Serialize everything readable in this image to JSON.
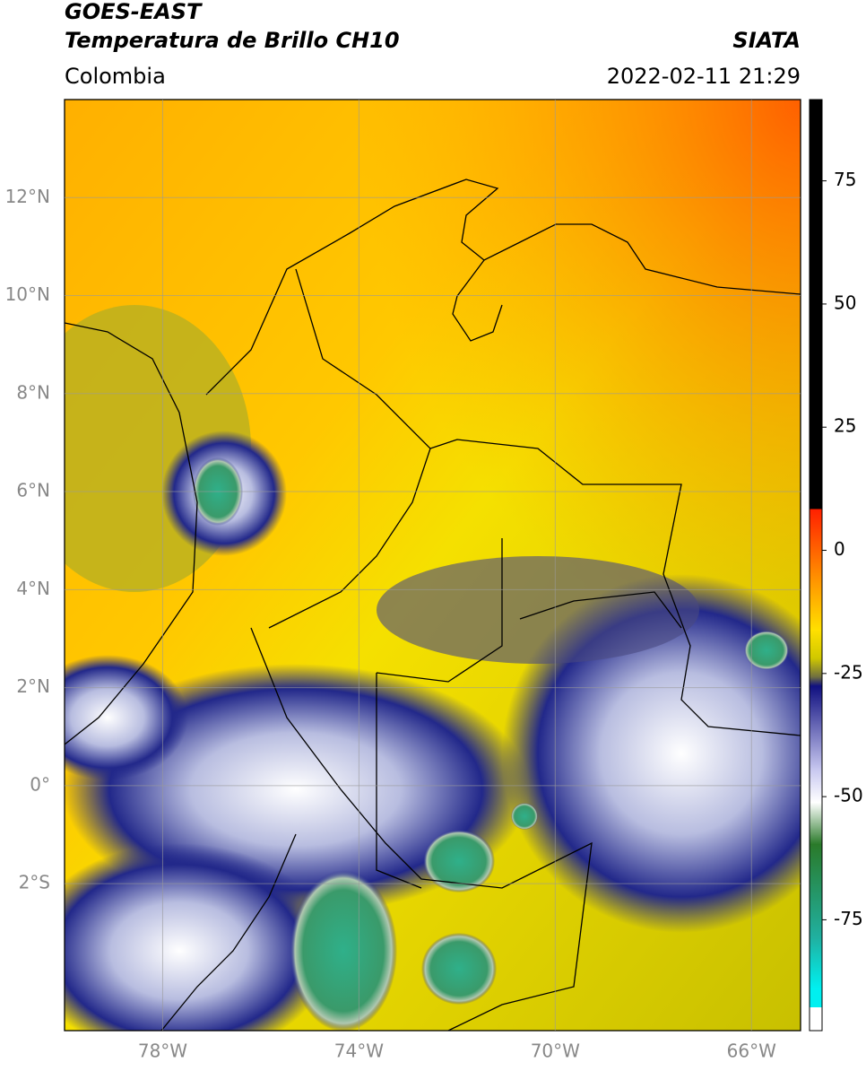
{
  "header": {
    "title": "GOES-EAST",
    "subtitle": "Temperatura de Brillo CH10",
    "source": "SIATA",
    "region": "Colombia",
    "datetime": "2022-02-11 21:29"
  },
  "map": {
    "xlim": [
      -80,
      -65
    ],
    "ylim": [
      -5,
      14
    ],
    "xticks": [
      {
        "value": -78,
        "label": "78°W"
      },
      {
        "value": -74,
        "label": "74°W"
      },
      {
        "value": -70,
        "label": "70°W"
      },
      {
        "value": -66,
        "label": "66°W"
      }
    ],
    "yticks": [
      {
        "value": 12,
        "label": "12°N"
      },
      {
        "value": 10,
        "label": "10°N"
      },
      {
        "value": 8,
        "label": "8°N"
      },
      {
        "value": 6,
        "label": "6°N"
      },
      {
        "value": 4,
        "label": "4°N"
      },
      {
        "value": 2,
        "label": "2°N"
      },
      {
        "value": 0,
        "label": "0°"
      },
      {
        "value": -2,
        "label": "2°S"
      }
    ],
    "grid": true
  },
  "colorbar": {
    "lim": [
      -97.5,
      91.5
    ],
    "ticks": [
      75,
      50,
      25,
      0,
      -25,
      -50,
      -75
    ]
  }
}
